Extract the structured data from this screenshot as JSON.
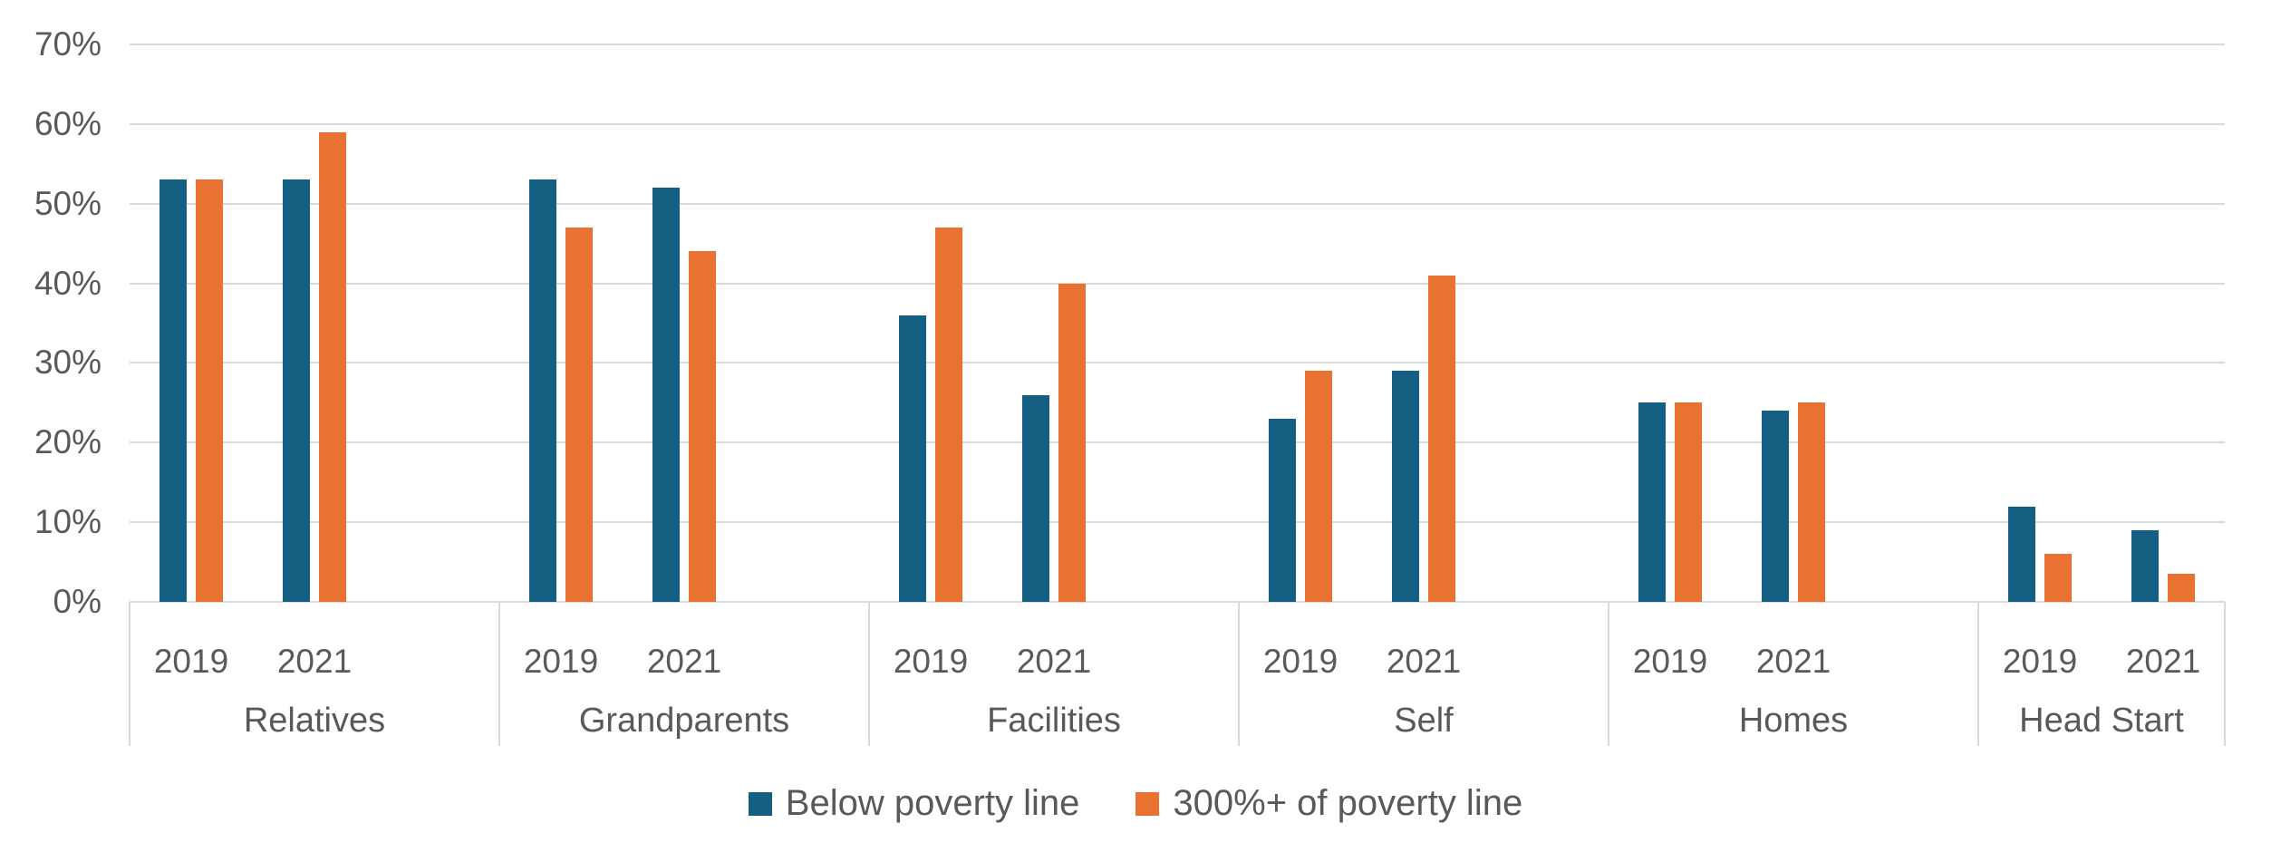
{
  "chart_data": {
    "type": "bar",
    "title": "",
    "xlabel": "",
    "ylabel": "",
    "categories": [
      "Relatives",
      "Grandparents",
      "Facilities",
      "Self",
      "Homes",
      "Head Start"
    ],
    "sub_categories": [
      "2019",
      "2021"
    ],
    "series": [
      {
        "name": "Below poverty line",
        "color": "#156082",
        "values": [
          [
            53,
            53
          ],
          [
            53,
            52
          ],
          [
            36,
            26
          ],
          [
            23,
            29
          ],
          [
            25,
            24
          ],
          [
            12,
            9
          ]
        ]
      },
      {
        "name": "300%+ of poverty line",
        "color": "#E97132",
        "values": [
          [
            53,
            59
          ],
          [
            47,
            44
          ],
          [
            47,
            40
          ],
          [
            29,
            41
          ],
          [
            25,
            25
          ],
          [
            6,
            3.5
          ]
        ]
      }
    ],
    "y_axis": {
      "unit": "%",
      "min": 0,
      "max": 70,
      "tick_step": 10,
      "tick_labels": [
        "0%",
        "10%",
        "20%",
        "30%",
        "40%",
        "50%",
        "60%",
        "70%"
      ]
    },
    "legend_position": "bottom",
    "grid": true,
    "colors": {
      "background": "#FFFFFF",
      "gridline": "#D9D9D9",
      "axis_text": "#595959"
    }
  }
}
